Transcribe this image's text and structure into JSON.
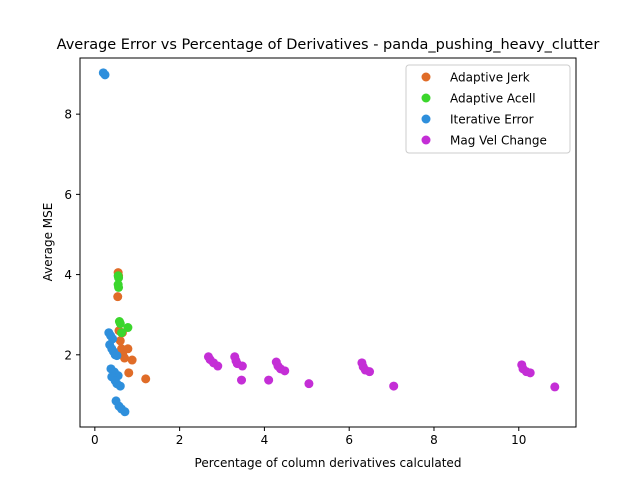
{
  "chart_data": {
    "type": "scatter",
    "title": "Average Error vs Percentage of Derivatives - panda_pushing_heavy_clutter",
    "xlabel": "Percentage of column derivatives calculated",
    "ylabel": "Average MSE",
    "xlim": [
      -0.35,
      11.35
    ],
    "ylim": [
      0.2,
      9.4
    ],
    "xticks": [
      0,
      2,
      4,
      6,
      8,
      10
    ],
    "yticks": [
      2,
      4,
      6,
      8
    ],
    "grid": false,
    "legend_position": "top-right",
    "series": [
      {
        "name": "Adaptive Jerk",
        "color": "#e06c28",
        "points": [
          [
            0.55,
            4.05
          ],
          [
            0.56,
            3.97
          ],
          [
            0.54,
            3.45
          ],
          [
            0.57,
            2.6
          ],
          [
            0.6,
            2.35
          ],
          [
            0.63,
            2.15
          ],
          [
            0.66,
            2.0
          ],
          [
            0.7,
            1.92
          ],
          [
            0.78,
            2.15
          ],
          [
            0.88,
            1.87
          ],
          [
            0.8,
            1.55
          ],
          [
            1.2,
            1.4
          ],
          [
            0.65,
            2.55
          ]
        ]
      },
      {
        "name": "Adaptive Acell",
        "color": "#3bd62c",
        "points": [
          [
            0.55,
            3.97
          ],
          [
            0.56,
            3.92
          ],
          [
            0.55,
            3.75
          ],
          [
            0.56,
            3.68
          ],
          [
            0.58,
            2.83
          ],
          [
            0.6,
            2.78
          ],
          [
            0.78,
            2.68
          ],
          [
            0.63,
            2.55
          ]
        ]
      },
      {
        "name": "Iterative Error",
        "color": "#2e8fdc",
        "points": [
          [
            0.2,
            9.03
          ],
          [
            0.24,
            8.98
          ],
          [
            0.33,
            2.55
          ],
          [
            0.37,
            2.48
          ],
          [
            0.42,
            2.4
          ],
          [
            0.35,
            2.25
          ],
          [
            0.4,
            2.15
          ],
          [
            0.44,
            2.08
          ],
          [
            0.48,
            2.0
          ],
          [
            0.52,
            1.98
          ],
          [
            0.38,
            1.65
          ],
          [
            0.46,
            1.57
          ],
          [
            0.55,
            1.48
          ],
          [
            0.4,
            1.45
          ],
          [
            0.48,
            1.35
          ],
          [
            0.52,
            1.28
          ],
          [
            0.6,
            1.22
          ],
          [
            0.5,
            0.85
          ],
          [
            0.57,
            0.72
          ],
          [
            0.63,
            0.65
          ],
          [
            0.71,
            0.58
          ]
        ]
      },
      {
        "name": "Mag Vel Change",
        "color": "#c42ed6",
        "points": [
          [
            2.68,
            1.95
          ],
          [
            2.72,
            1.88
          ],
          [
            2.8,
            1.8
          ],
          [
            2.9,
            1.72
          ],
          [
            3.3,
            1.95
          ],
          [
            3.33,
            1.85
          ],
          [
            3.36,
            1.78
          ],
          [
            3.48,
            1.72
          ],
          [
            3.46,
            1.37
          ],
          [
            4.28,
            1.82
          ],
          [
            4.32,
            1.72
          ],
          [
            4.38,
            1.65
          ],
          [
            4.48,
            1.6
          ],
          [
            4.1,
            1.37
          ],
          [
            5.05,
            1.28
          ],
          [
            6.3,
            1.8
          ],
          [
            6.33,
            1.7
          ],
          [
            6.38,
            1.62
          ],
          [
            6.48,
            1.58
          ],
          [
            7.05,
            1.22
          ],
          [
            10.07,
            1.75
          ],
          [
            10.1,
            1.65
          ],
          [
            10.18,
            1.58
          ],
          [
            10.27,
            1.55
          ],
          [
            10.85,
            1.2
          ]
        ]
      }
    ]
  }
}
